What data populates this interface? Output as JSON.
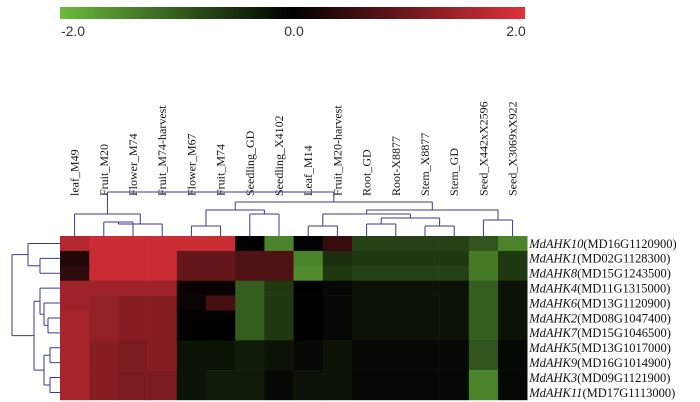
{
  "chart_data": {
    "type": "heatmap",
    "colorscale": {
      "min": -2.0,
      "mid": 0.0,
      "max": 2.0,
      "low_color": "#6abb3c",
      "mid_color": "#000000",
      "high_color": "#e0313a",
      "tick_labels": [
        "-2.0",
        "0.0",
        "2.0"
      ]
    },
    "columns": [
      "leaf_M49",
      "Fruit_M20",
      "Flower_M74",
      "Fruit_M74-harvest",
      "Flower_M67",
      "Fruit_M74",
      "Seedling_GD",
      "Seedling_X4102",
      "Leaf_M14",
      "Fruit_M20-harvest",
      "Root_GD",
      "Root-X8877",
      "Stem_X8877",
      "Stem_GD",
      "Seed_X442xX2596",
      "Seed_X3069xX922"
    ],
    "rows": [
      {
        "gene": "MdAHK10",
        "id": "(MD16G1120900)"
      },
      {
        "gene": "MdAHK1",
        "id": "(MD02G1128300)"
      },
      {
        "gene": "MdAHK8",
        "id": "(MD15G1243500)"
      },
      {
        "gene": "MdAHK4",
        "id": "(MD11G1315000)"
      },
      {
        "gene": "MdAHK6",
        "id": "(MD13G1120900)"
      },
      {
        "gene": "MdAHK2",
        "id": "(MD08G1047400)"
      },
      {
        "gene": "MdAHK7",
        "id": "(MD15G1046500)"
      },
      {
        "gene": "MdAHK5",
        "id": "(MD13G1017000)"
      },
      {
        "gene": "MdAHK9",
        "id": "(MD16G1014900)"
      },
      {
        "gene": "MdAHK3",
        "id": "(MD09G1121900)"
      },
      {
        "gene": "MdAHK11",
        "id": "(MD17G1113000)"
      }
    ],
    "values": [
      [
        1.6,
        1.8,
        1.8,
        1.8,
        1.8,
        1.8,
        0.0,
        -1.4,
        0.0,
        0.5,
        -0.7,
        -0.7,
        -0.7,
        -0.7,
        -0.9,
        -1.4
      ],
      [
        0.3,
        1.8,
        1.8,
        1.8,
        0.9,
        0.9,
        0.7,
        0.7,
        -1.4,
        -0.5,
        -0.6,
        -0.6,
        -0.6,
        -0.6,
        -1.3,
        -0.6
      ],
      [
        0.4,
        1.8,
        1.8,
        1.8,
        0.9,
        0.9,
        0.7,
        0.7,
        -1.5,
        -0.6,
        -0.7,
        -0.7,
        -0.7,
        -0.7,
        -1.3,
        -0.6
      ],
      [
        1.4,
        1.4,
        1.4,
        1.4,
        0.1,
        0.1,
        -1.0,
        -0.6,
        0.0,
        -0.1,
        -0.2,
        -0.2,
        -0.2,
        -0.2,
        -1.0,
        -0.2
      ],
      [
        1.4,
        1.3,
        1.2,
        1.2,
        0.1,
        0.6,
        -1.0,
        -0.6,
        0.0,
        -0.1,
        -0.2,
        -0.2,
        -0.2,
        -0.2,
        -1.0,
        -0.2
      ],
      [
        1.5,
        1.3,
        1.2,
        1.2,
        0.0,
        0.0,
        -1.0,
        -0.6,
        0.0,
        -0.1,
        -0.2,
        -0.2,
        -0.2,
        -0.2,
        -1.0,
        -0.2
      ],
      [
        1.5,
        1.3,
        1.2,
        1.2,
        0.0,
        0.0,
        -1.0,
        -0.6,
        0.0,
        -0.1,
        -0.2,
        -0.2,
        -0.2,
        -0.2,
        -1.0,
        -0.2
      ],
      [
        1.5,
        1.2,
        1.1,
        1.2,
        -0.2,
        -0.2,
        -0.3,
        -0.2,
        -0.1,
        -0.2,
        -0.1,
        -0.1,
        -0.1,
        -0.1,
        -0.9,
        -0.1
      ],
      [
        1.5,
        1.2,
        1.1,
        1.2,
        -0.2,
        -0.2,
        -0.3,
        -0.2,
        -0.1,
        -0.2,
        -0.1,
        -0.1,
        -0.1,
        -0.1,
        -0.9,
        -0.1
      ],
      [
        1.5,
        1.2,
        1.1,
        1.1,
        -0.2,
        -0.3,
        -0.3,
        -0.1,
        -0.2,
        -0.2,
        -0.1,
        -0.1,
        -0.1,
        -0.1,
        -1.4,
        -0.1
      ],
      [
        1.5,
        1.2,
        1.1,
        1.1,
        -0.2,
        -0.3,
        -0.3,
        -0.1,
        -0.2,
        -0.2,
        -0.1,
        -0.1,
        -0.1,
        -0.1,
        -1.4,
        -0.1
      ]
    ]
  }
}
